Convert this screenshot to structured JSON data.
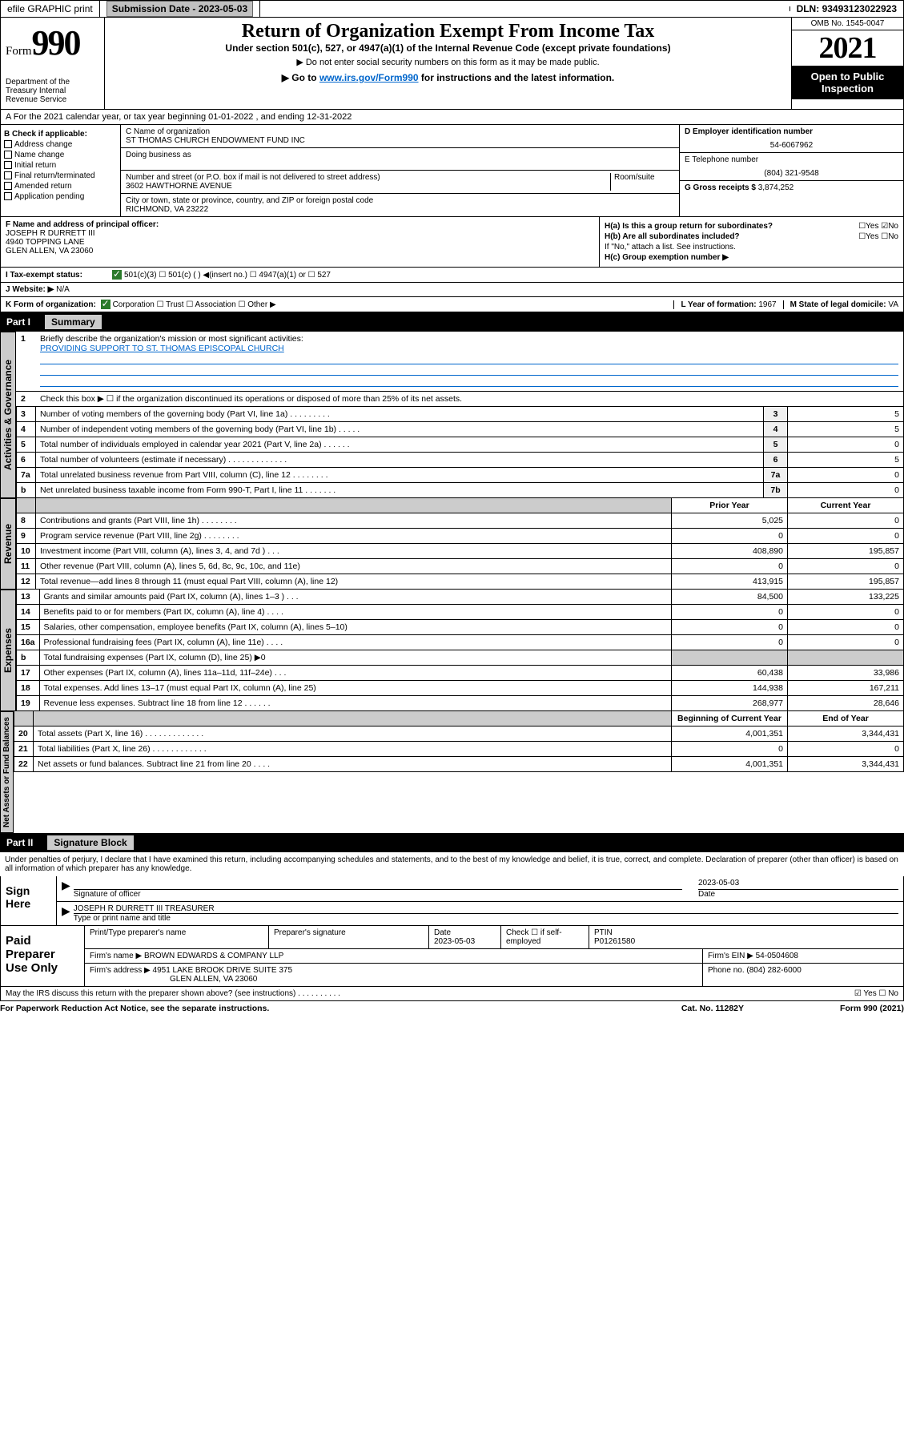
{
  "topbar": {
    "efile": "efile GRAPHIC print",
    "subdate_label": "Submission Date - ",
    "subdate": "2023-05-03",
    "dln_label": "DLN: ",
    "dln": "93493123022923"
  },
  "header": {
    "form_word": "Form",
    "form_num": "990",
    "dept": "Department of the Treasury\nInternal Revenue Service",
    "title": "Return of Organization Exempt From Income Tax",
    "sub1": "Under section 501(c), 527, or 4947(a)(1) of the Internal Revenue Code (except private foundations)",
    "sub2": "▶ Do not enter social security numbers on this form as it may be made public.",
    "sub3_pre": "▶ Go to ",
    "sub3_link": "www.irs.gov/Form990",
    "sub3_post": " for instructions and the latest information.",
    "omb": "OMB No. 1545-0047",
    "year": "2021",
    "otp": "Open to Public Inspection"
  },
  "section_a": {
    "text": "A For the 2021 calendar year, or tax year beginning 01-01-2022    , and ending 12-31-2022"
  },
  "col_b": {
    "label": "B Check if applicable:",
    "items": [
      "Address change",
      "Name change",
      "Initial return",
      "Final return/terminated",
      "Amended return",
      "Application pending"
    ]
  },
  "col_c": {
    "name_label": "C Name of organization",
    "name": "ST THOMAS CHURCH ENDOWMENT FUND INC",
    "dba_label": "Doing business as",
    "addr_label": "Number and street (or P.O. box if mail is not delivered to street address)",
    "room_label": "Room/suite",
    "addr": "3602 HAWTHORNE AVENUE",
    "city_label": "City or town, state or province, country, and ZIP or foreign postal code",
    "city": "RICHMOND, VA  23222"
  },
  "col_d": {
    "ein_label": "D Employer identification number",
    "ein": "54-6067962",
    "tel_label": "E Telephone number",
    "tel": "(804) 321-9548",
    "gross_label": "G Gross receipts $ ",
    "gross": "3,874,252"
  },
  "block_f": {
    "label": "F  Name and address of principal officer:",
    "name": "JOSEPH R DURRETT III",
    "addr1": "4940 TOPPING LANE",
    "addr2": "GLEN ALLEN, VA  23060"
  },
  "block_h": {
    "ha": "H(a)  Is this a group return for subordinates?",
    "ha_yn": "☐Yes ☑No",
    "hb": "H(b)  Are all subordinates included?",
    "hb_yn": "☐Yes ☐No",
    "hb_note": "If \"No,\" attach a list. See instructions.",
    "hc": "H(c)  Group exemption number ▶"
  },
  "line_i": {
    "label": "I    Tax-exempt status:",
    "opts": "501(c)(3)     ☐  501(c) (  ) ◀(insert no.)     ☐  4947(a)(1) or  ☐  527"
  },
  "line_j": {
    "label": "J   Website: ▶",
    "val": "N/A"
  },
  "line_k": {
    "label": "K Form of organization:",
    "opts": "Corporation  ☐ Trust  ☐ Association  ☐ Other ▶",
    "l_label": "L Year of formation: ",
    "l_val": "1967",
    "m_label": "M State of legal domicile: ",
    "m_val": "VA"
  },
  "part1": {
    "num": "Part I",
    "title": "Summary"
  },
  "vtabs": {
    "gov": "Activities & Governance",
    "rev": "Revenue",
    "exp": "Expenses",
    "net": "Net Assets or Fund Balances"
  },
  "summary": {
    "line1_label": "Briefly describe the organization's mission or most significant activities:",
    "line1_text": "PROVIDING SUPPORT TO ST. THOMAS EPISCOPAL CHURCH",
    "line2": "Check this box ▶ ☐  if the organization discontinued its operations or disposed of more than 25% of its net assets.",
    "rows": [
      {
        "n": "3",
        "t": "Number of voting members of the governing body (Part VI, line 1a)   .    .    .    .    .    .    .    .    .",
        "b": "3",
        "v": "5"
      },
      {
        "n": "4",
        "t": "Number of independent voting members of the governing body (Part VI, line 1b)   .    .    .    .    .",
        "b": "4",
        "v": "5"
      },
      {
        "n": "5",
        "t": "Total number of individuals employed in calendar year 2021 (Part V, line 2a)   .    .    .    .    .    .",
        "b": "5",
        "v": "0"
      },
      {
        "n": "6",
        "t": "Total number of volunteers (estimate if necessary)   .    .    .    .    .    .    .    .    .    .    .    .    .",
        "b": "6",
        "v": "5"
      },
      {
        "n": "7a",
        "t": "Total unrelated business revenue from Part VIII, column (C), line 12   .    .    .    .    .    .    .    .",
        "b": "7a",
        "v": "0"
      },
      {
        "n": "b",
        "t": "Net unrelated business taxable income from Form 990-T, Part I, line 11   .    .    .    .    .    .    .",
        "b": "7b",
        "v": "0"
      }
    ],
    "py_hdr": "Prior Year",
    "cy_hdr": "Current Year",
    "boy_hdr": "Beginning of Current Year",
    "eoy_hdr": "End of Year",
    "rev_rows": [
      {
        "n": "8",
        "t": "Contributions and grants (Part VIII, line 1h)   .    .    .    .    .    .    .    .",
        "py": "5,025",
        "cy": "0"
      },
      {
        "n": "9",
        "t": "Program service revenue (Part VIII, line 2g)   .    .    .    .    .    .    .    .",
        "py": "0",
        "cy": "0"
      },
      {
        "n": "10",
        "t": "Investment income (Part VIII, column (A), lines 3, 4, and 7d )   .    .    .",
        "py": "408,890",
        "cy": "195,857"
      },
      {
        "n": "11",
        "t": "Other revenue (Part VIII, column (A), lines 5, 6d, 8c, 9c, 10c, and 11e)",
        "py": "0",
        "cy": "0"
      },
      {
        "n": "12",
        "t": "Total revenue—add lines 8 through 11 (must equal Part VIII, column (A), line 12)",
        "py": "413,915",
        "cy": "195,857"
      }
    ],
    "exp_rows": [
      {
        "n": "13",
        "t": "Grants and similar amounts paid (Part IX, column (A), lines 1–3 )   .    .    .",
        "py": "84,500",
        "cy": "133,225"
      },
      {
        "n": "14",
        "t": "Benefits paid to or for members (Part IX, column (A), line 4)   .    .    .    .",
        "py": "0",
        "cy": "0"
      },
      {
        "n": "15",
        "t": "Salaries, other compensation, employee benefits (Part IX, column (A), lines 5–10)",
        "py": "0",
        "cy": "0"
      },
      {
        "n": "16a",
        "t": "Professional fundraising fees (Part IX, column (A), line 11e)   .    .    .    .",
        "py": "0",
        "cy": "0"
      },
      {
        "n": "b",
        "t": "Total fundraising expenses (Part IX, column (D), line 25) ▶0",
        "py": "",
        "cy": "",
        "gray": true
      },
      {
        "n": "17",
        "t": "Other expenses (Part IX, column (A), lines 11a–11d, 11f–24e)   .    .    .",
        "py": "60,438",
        "cy": "33,986"
      },
      {
        "n": "18",
        "t": "Total expenses. Add lines 13–17 (must equal Part IX, column (A), line 25)",
        "py": "144,938",
        "cy": "167,211"
      },
      {
        "n": "19",
        "t": "Revenue less expenses. Subtract line 18 from line 12   .    .    .    .    .    .",
        "py": "268,977",
        "cy": "28,646"
      }
    ],
    "net_rows": [
      {
        "n": "20",
        "t": "Total assets (Part X, line 16)   .    .    .    .    .    .    .    .    .    .    .    .    .",
        "py": "4,001,351",
        "cy": "3,344,431"
      },
      {
        "n": "21",
        "t": "Total liabilities (Part X, line 26)   .    .    .    .    .    .    .    .    .    .    .    .",
        "py": "0",
        "cy": "0"
      },
      {
        "n": "22",
        "t": "Net assets or fund balances. Subtract line 21 from line 20   .    .    .    .",
        "py": "4,001,351",
        "cy": "3,344,431"
      }
    ]
  },
  "part2": {
    "num": "Part II",
    "title": "Signature Block"
  },
  "sig": {
    "decl": "Under penalties of perjury, I declare that I have examined this return, including accompanying schedules and statements, and to the best of my knowledge and belief, it is true, correct, and complete. Declaration of preparer (other than officer) is based on all information of which preparer has any knowledge.",
    "sign_here": "Sign Here",
    "sig_officer": "Signature of officer",
    "date": "2023-05-03",
    "date_label": "Date",
    "name": "JOSEPH R DURRETT III TREASURER",
    "name_label": "Type or print name and title"
  },
  "prep": {
    "title": "Paid Preparer Use Only",
    "h1": "Print/Type preparer's name",
    "h2": "Preparer's signature",
    "h3": "Date",
    "h4": "Check ☐ if self-employed",
    "h5": "PTIN",
    "date": "2023-05-03",
    "ptin": "P01261580",
    "firm_label": "Firm's name      ▶ ",
    "firm": "BROWN EDWARDS & COMPANY LLP",
    "ein_label": "Firm's EIN ▶ ",
    "ein": "54-0504608",
    "addr_label": "Firm's address ▶ ",
    "addr": "4951 LAKE BROOK DRIVE SUITE 375",
    "addr2": "GLEN ALLEN, VA  23060",
    "phone_label": "Phone no. ",
    "phone": "(804) 282-6000"
  },
  "footer": {
    "q": "May the IRS discuss this return with the preparer shown above? (see instructions)   .    .    .    .    .    .    .    .    .    .",
    "yn": "☑ Yes  ☐ No",
    "paperwork": "For Paperwork Reduction Act Notice, see the separate instructions.",
    "cat": "Cat. No. 11282Y",
    "form": "Form 990 (2021)"
  }
}
